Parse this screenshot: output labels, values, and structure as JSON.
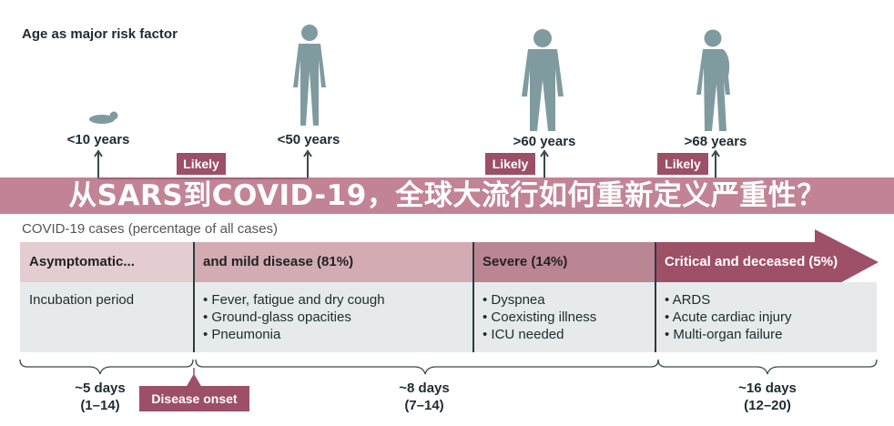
{
  "banner": {
    "title": "从SARS到COVID-19，全球大流行如何重新定义严重性？"
  },
  "age_section": {
    "title": "Age as major risk factor",
    "groups": [
      {
        "label": "<10 years",
        "icon": "baby-icon"
      },
      {
        "label": "<50 years",
        "icon": "adult-icon"
      },
      {
        "label": ">60 years",
        "icon": "older-adult-icon"
      },
      {
        "label": ">68 years",
        "icon": "elderly-icon"
      }
    ],
    "likely_labels": [
      "Likely",
      "Likely",
      "Likely"
    ]
  },
  "cases": {
    "title": "COVID-19 cases (percentage of all cases)",
    "columns": [
      {
        "header": "Asymptomatic...",
        "items": [
          "Incubation period"
        ],
        "color": "#e3cdd1"
      },
      {
        "header": "and mild disease (81%)",
        "items": [
          "• Fever, fatigue and dry cough",
          "• Ground-glass opacities",
          "• Pneumonia"
        ],
        "color": "#d2abb3"
      },
      {
        "header": "Severe (14%)",
        "items": [
          "• Dyspnea",
          "• Coexisting illness",
          "• ICU needed"
        ],
        "color": "#ba8693"
      },
      {
        "header": "Critical and deceased (5%)",
        "items": [
          "• ARDS",
          "• Acute cardiac injury",
          "• Multi-organ failure"
        ],
        "color": "#9e5067"
      }
    ]
  },
  "timeline": {
    "periods": [
      {
        "duration": "~5 days",
        "range": "(1–14)"
      },
      {
        "duration": "~8 days",
        "range": "(7–14)"
      },
      {
        "duration": "~16 days",
        "range": "(12–20)"
      }
    ],
    "onset_label": "Disease onset"
  }
}
